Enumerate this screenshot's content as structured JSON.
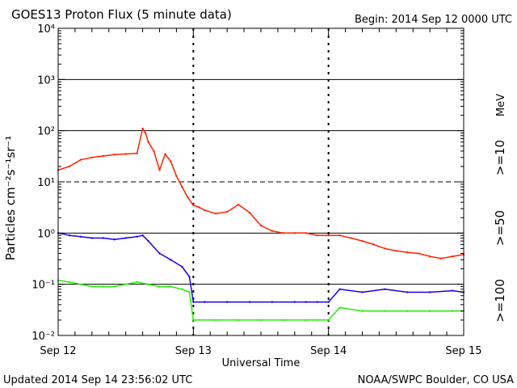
{
  "title": "GOES13 Proton Flux (5 minute data)",
  "begin": "Begin: 2014 Sep 12 0000 UTC",
  "updated": "Updated 2014 Sep 14 23:56:02 UTC",
  "credit": "NOAA/SWPC Boulder, CO USA",
  "colors": {
    "p10": "#ff2200",
    "p50": "#1a00e6",
    "p100": "#22ee00",
    "axis": "#000000"
  },
  "chart_data": {
    "type": "line",
    "title": "GOES13 Proton Flux (5 minute data)",
    "xlabel": "Universal Time",
    "ylabel": "Particles cm⁻²s⁻¹sr⁻¹",
    "y_scale": "log",
    "ylim": [
      0.01,
      10000
    ],
    "xlim": [
      "2014-09-12 00:00",
      "2014-09-15 00:00"
    ],
    "x_ticks": [
      "Sep 12",
      "Sep 13",
      "Sep 14",
      "Sep 15"
    ],
    "y_ticks": [
      "10⁻²",
      "10⁻¹",
      "10⁰",
      "10¹",
      "10²",
      "10³",
      "10⁴"
    ],
    "threshold_lines": [
      {
        "value": 10,
        "style": "dashed"
      },
      {
        "value": 0.1,
        "style": "solid"
      }
    ],
    "legend": {
      "position": "right",
      "unit": "MeV"
    },
    "series": [
      {
        "name": ">=10",
        "x_hours": [
          0,
          2,
          4,
          6,
          8,
          10,
          12,
          14,
          15,
          15.5,
          16,
          17,
          18,
          19,
          20,
          21,
          22,
          23,
          24,
          25,
          26,
          28,
          30,
          32,
          34,
          36,
          38,
          40,
          42,
          44,
          46,
          48,
          50,
          52,
          54,
          56,
          58,
          60,
          62,
          64,
          66,
          68,
          70,
          72
        ],
        "values": [
          17,
          20,
          27,
          30,
          32,
          34,
          35,
          36,
          110,
          90,
          60,
          40,
          17,
          35,
          25,
          13,
          8,
          5,
          3.5,
          3.2,
          2.8,
          2.4,
          2.6,
          3.6,
          2.5,
          1.4,
          1.1,
          1.0,
          1.0,
          1.0,
          0.9,
          0.9,
          0.9,
          0.8,
          0.7,
          0.6,
          0.5,
          0.45,
          0.42,
          0.4,
          0.35,
          0.32,
          0.35,
          0.38
        ]
      },
      {
        "name": ">=50",
        "x_hours": [
          0,
          2,
          4,
          6,
          8,
          10,
          12,
          14,
          15,
          16,
          18,
          20,
          22,
          23.3,
          24,
          26,
          30,
          34,
          38,
          42,
          44,
          46,
          48,
          50,
          54,
          58,
          62,
          66,
          70,
          72
        ],
        "values": [
          1.0,
          0.9,
          0.85,
          0.8,
          0.8,
          0.75,
          0.8,
          0.85,
          0.9,
          0.7,
          0.4,
          0.3,
          0.22,
          0.14,
          0.045,
          0.045,
          0.045,
          0.045,
          0.045,
          0.045,
          0.045,
          0.045,
          0.045,
          0.08,
          0.07,
          0.08,
          0.07,
          0.07,
          0.075,
          0.07
        ]
      },
      {
        "name": ">=100",
        "x_hours": [
          0,
          2,
          4,
          6,
          8,
          10,
          12,
          14,
          16,
          18,
          20,
          22,
          23.3,
          24,
          28,
          32,
          36,
          40,
          44,
          46,
          48,
          50,
          54,
          58,
          62,
          66,
          70,
          72
        ],
        "values": [
          0.12,
          0.11,
          0.1,
          0.09,
          0.09,
          0.09,
          0.1,
          0.11,
          0.1,
          0.09,
          0.09,
          0.08,
          0.07,
          0.02,
          0.02,
          0.02,
          0.02,
          0.02,
          0.02,
          0.02,
          0.02,
          0.035,
          0.03,
          0.03,
          0.03,
          0.03,
          0.03,
          0.03
        ]
      }
    ]
  }
}
